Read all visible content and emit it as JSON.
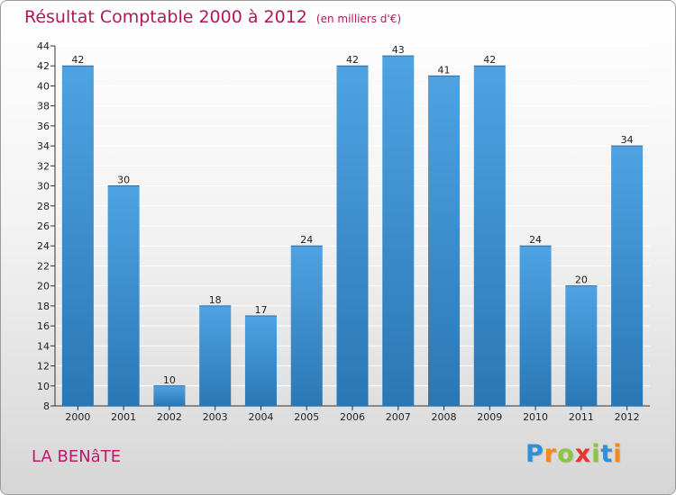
{
  "header": {
    "title": "Résultat Comptable 2000 à 2012",
    "subtitle": "(en milliers d'€)"
  },
  "footer": {
    "place": "LA BENâTE",
    "logo": [
      "P",
      "r",
      "o",
      "x",
      "i",
      "t",
      "i"
    ],
    "logo_colors": [
      "#2f8fd8",
      "#f08a1c",
      "#8cc63f",
      "#e8352e",
      "#8cc63f",
      "#2f8fd8",
      "#f08a1c"
    ]
  },
  "colors": {
    "bar": "#4fa3e3",
    "bar_dark": "#2a77b5",
    "title": "#b0185a",
    "axis": "#333333"
  },
  "chart_data": {
    "type": "bar",
    "title": "Résultat Comptable 2000 à 2012",
    "subtitle": "(en milliers d'€)",
    "xlabel": "",
    "ylabel": "",
    "categories": [
      "2000",
      "2001",
      "2002",
      "2003",
      "2004",
      "2005",
      "2006",
      "2007",
      "2008",
      "2009",
      "2010",
      "2011",
      "2012"
    ],
    "values": [
      42,
      30,
      10,
      18,
      17,
      24,
      42,
      43,
      41,
      42,
      24,
      20,
      34
    ],
    "ylim": [
      8,
      44
    ],
    "yticks": [
      8,
      10,
      12,
      14,
      16,
      18,
      20,
      22,
      24,
      26,
      28,
      30,
      32,
      34,
      36,
      38,
      40,
      42,
      44
    ],
    "grid": true
  }
}
